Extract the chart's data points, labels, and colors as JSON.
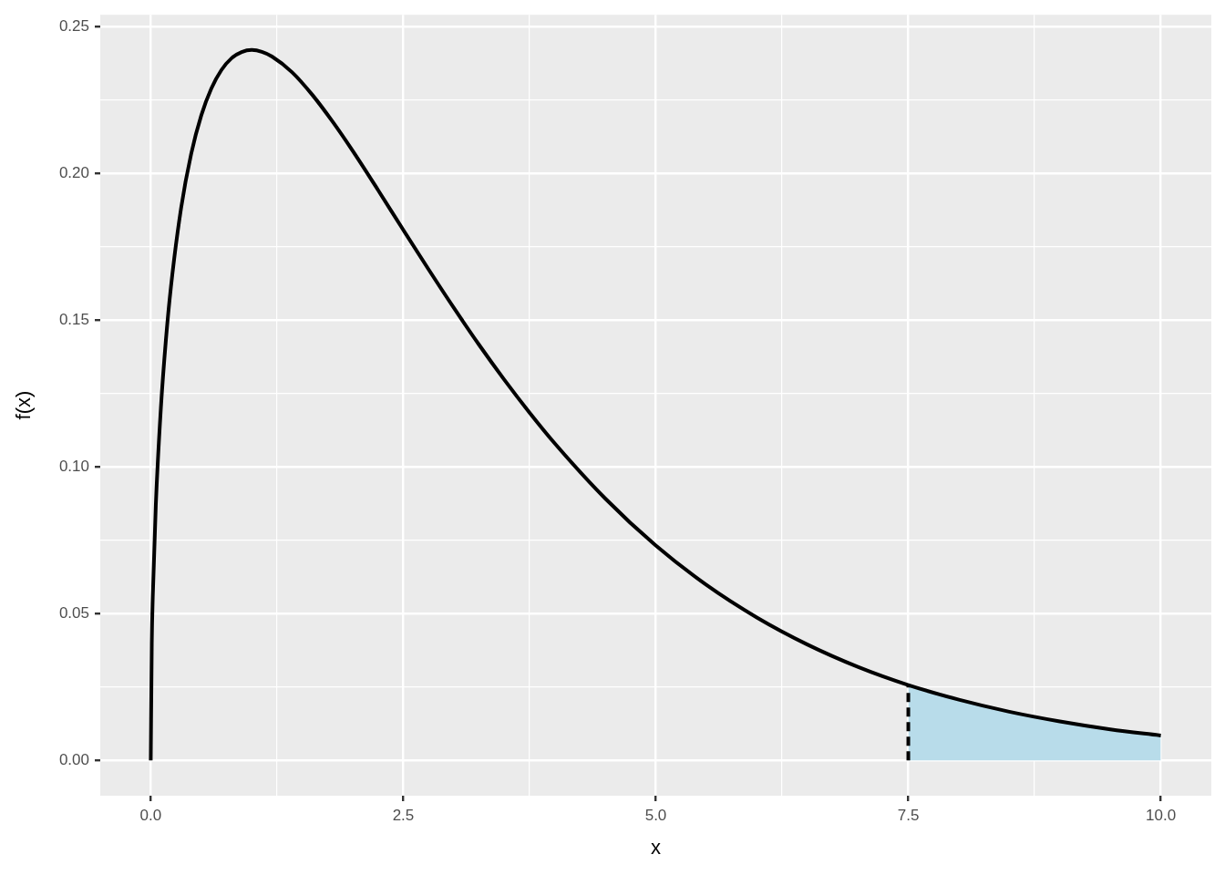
{
  "chart_data": {
    "type": "line",
    "xlabel": "x",
    "ylabel": "f(x)",
    "xlim": [
      -0.5,
      10.5
    ],
    "ylim": [
      -0.012,
      0.254
    ],
    "xticks": [
      {
        "value": 0,
        "label": "0.0"
      },
      {
        "value": 1.25,
        "label": null
      },
      {
        "value": 2.5,
        "label": "2.5"
      },
      {
        "value": 3.75,
        "label": null
      },
      {
        "value": 5,
        "label": "5.0"
      },
      {
        "value": 6.25,
        "label": null
      },
      {
        "value": 7.5,
        "label": "7.5"
      },
      {
        "value": 8.75,
        "label": null
      },
      {
        "value": 10,
        "label": "10.0"
      }
    ],
    "yticks": [
      {
        "value": 0,
        "label": "0.00"
      },
      {
        "value": 0.025,
        "label": null
      },
      {
        "value": 0.05,
        "label": "0.05"
      },
      {
        "value": 0.075,
        "label": null
      },
      {
        "value": 0.1,
        "label": "0.10"
      },
      {
        "value": 0.125,
        "label": null
      },
      {
        "value": 0.15,
        "label": "0.15"
      },
      {
        "value": 0.175,
        "label": null
      },
      {
        "value": 0.2,
        "label": "0.20"
      },
      {
        "value": 0.225,
        "label": null
      },
      {
        "value": 0.25,
        "label": "0.25"
      }
    ],
    "grid": true,
    "marker": "none",
    "series": [
      {
        "type": "area",
        "color": "#b8dcea",
        "x": [
          7.5,
          8,
          8.5,
          9,
          9.5,
          10
        ],
        "values": [
          0.0257,
          0.0207,
          0.0166,
          0.0133,
          0.0106,
          0.0085
        ]
      },
      {
        "color": "#000000",
        "x": [
          0,
          0.01,
          0.02,
          0.05,
          0.1,
          0.15,
          0.2,
          0.3,
          0.4,
          0.5,
          0.6,
          0.7,
          0.8,
          0.9,
          1,
          1.1,
          1.2,
          1.4,
          1.6,
          1.8,
          2,
          2.25,
          2.5,
          2.75,
          3,
          3.25,
          3.5,
          3.75,
          4,
          4.5,
          5,
          5.5,
          6,
          6.5,
          7,
          7.5,
          8,
          8.5,
          9,
          9.5,
          10
        ],
        "values": [
          0,
          0.0397,
          0.0559,
          0.087,
          0.12,
          0.1433,
          0.1614,
          0.1881,
          0.2066,
          0.2197,
          0.2289,
          0.2352,
          0.2392,
          0.2413,
          0.242,
          0.2414,
          0.2398,
          0.2344,
          0.2267,
          0.2176,
          0.2076,
          0.1943,
          0.1807,
          0.1673,
          0.1542,
          0.1416,
          0.1297,
          0.1185,
          0.108,
          0.0892,
          0.0732,
          0.0598,
          0.0487,
          0.0395,
          0.0319,
          0.0257,
          0.0207,
          0.0166,
          0.0133,
          0.0106,
          0.0085
        ]
      },
      {
        "color": "#000000",
        "line_style": "dashed",
        "x": [
          7.5,
          7.5
        ],
        "values": [
          0,
          0.0257
        ]
      }
    ]
  }
}
